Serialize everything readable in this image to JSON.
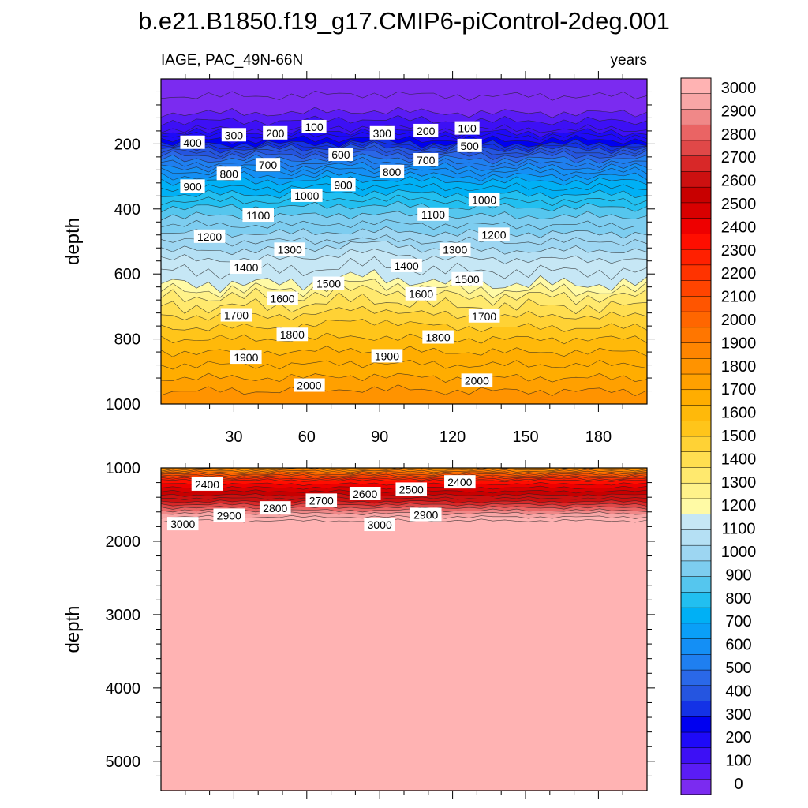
{
  "title": "b.e21.B1850.f19_g17.CMIP6-piControl-2deg.001",
  "subtitle_left": "IAGE, PAC_49N-66N",
  "subtitle_right": "years",
  "chart_data": {
    "type": "heatmap",
    "title": "b.e21.B1850.f19_g17.CMIP6-piControl-2deg.001",
    "variable": "IAGE, PAC_49N-66N",
    "units": "years",
    "ylabel": "depth",
    "xlim": [
      0,
      200
    ],
    "xticks": [
      30,
      60,
      90,
      120,
      150,
      180
    ],
    "panels": [
      {
        "name": "upper",
        "ylim": [
          0,
          1000
        ],
        "yticks": [
          200,
          400,
          600,
          800,
          1000
        ],
        "ylabel": "depth",
        "depth_at_level": [
          [
            0,
            0
          ],
          [
            100,
            105
          ],
          [
            200,
            155
          ],
          [
            300,
            175
          ],
          [
            400,
            200
          ],
          [
            500,
            215
          ],
          [
            600,
            235
          ],
          [
            700,
            260
          ],
          [
            800,
            285
          ],
          [
            900,
            315
          ],
          [
            1000,
            355
          ],
          [
            1100,
            395
          ],
          [
            1200,
            450
          ],
          [
            1300,
            500
          ],
          [
            1400,
            555
          ],
          [
            1500,
            630
          ],
          [
            1600,
            670
          ],
          [
            1700,
            730
          ],
          [
            1800,
            800
          ],
          [
            1900,
            880
          ],
          [
            2000,
            960
          ],
          [
            2050,
            1000
          ]
        ],
        "contour_labels": [
          {
            "x": 13,
            "depth": 196,
            "text": "400"
          },
          {
            "x": 30,
            "depth": 173,
            "text": "300"
          },
          {
            "x": 47,
            "depth": 167,
            "text": "200"
          },
          {
            "x": 63,
            "depth": 148,
            "text": "100"
          },
          {
            "x": 91,
            "depth": 167,
            "text": "300"
          },
          {
            "x": 109,
            "depth": 160,
            "text": "200"
          },
          {
            "x": 126,
            "depth": 152,
            "text": "100"
          },
          {
            "x": 127,
            "depth": 206,
            "text": "500"
          },
          {
            "x": 74,
            "depth": 233,
            "text": "600"
          },
          {
            "x": 44,
            "depth": 265,
            "text": "700"
          },
          {
            "x": 109,
            "depth": 250,
            "text": "700"
          },
          {
            "x": 28,
            "depth": 292,
            "text": "800"
          },
          {
            "x": 95,
            "depth": 286,
            "text": "800"
          },
          {
            "x": 13,
            "depth": 331,
            "text": "900"
          },
          {
            "x": 75,
            "depth": 326,
            "text": "900"
          },
          {
            "x": 60,
            "depth": 359,
            "text": "1000"
          },
          {
            "x": 133,
            "depth": 372,
            "text": "1000"
          },
          {
            "x": 40,
            "depth": 420,
            "text": "1100"
          },
          {
            "x": 112,
            "depth": 417,
            "text": "1100"
          },
          {
            "x": 20,
            "depth": 485,
            "text": "1200"
          },
          {
            "x": 137,
            "depth": 479,
            "text": "1200"
          },
          {
            "x": 53,
            "depth": 525,
            "text": "1300"
          },
          {
            "x": 121,
            "depth": 526,
            "text": "1300"
          },
          {
            "x": 35,
            "depth": 580,
            "text": "1400"
          },
          {
            "x": 101,
            "depth": 575,
            "text": "1400"
          },
          {
            "x": 69,
            "depth": 630,
            "text": "1500"
          },
          {
            "x": 126,
            "depth": 616,
            "text": "1500"
          },
          {
            "x": 50,
            "depth": 676,
            "text": "1600"
          },
          {
            "x": 107,
            "depth": 662,
            "text": "1600"
          },
          {
            "x": 31,
            "depth": 727,
            "text": "1700"
          },
          {
            "x": 133,
            "depth": 730,
            "text": "1700"
          },
          {
            "x": 54,
            "depth": 787,
            "text": "1800"
          },
          {
            "x": 114,
            "depth": 795,
            "text": "1800"
          },
          {
            "x": 35,
            "depth": 857,
            "text": "1900"
          },
          {
            "x": 93,
            "depth": 853,
            "text": "1900"
          },
          {
            "x": 61,
            "depth": 943,
            "text": "2000"
          },
          {
            "x": 130,
            "depth": 928,
            "text": "2000"
          }
        ]
      },
      {
        "name": "lower",
        "ylim": [
          1000,
          5400
        ],
        "yticks": [
          1000,
          2000,
          3000,
          4000,
          5000
        ],
        "ylabel": "depth",
        "depth_at_level": [
          [
            2000,
            1000
          ],
          [
            2400,
            1170
          ],
          [
            2500,
            1270
          ],
          [
            2600,
            1370
          ],
          [
            2700,
            1460
          ],
          [
            2800,
            1540
          ],
          [
            2900,
            1620
          ],
          [
            3000,
            1720
          ],
          [
            3050,
            5400
          ]
        ],
        "contour_labels": [
          {
            "x": 19,
            "depth": 1225,
            "text": "2400"
          },
          {
            "x": 123,
            "depth": 1195,
            "text": "2400"
          },
          {
            "x": 103,
            "depth": 1295,
            "text": "2500"
          },
          {
            "x": 84,
            "depth": 1355,
            "text": "2600"
          },
          {
            "x": 66,
            "depth": 1445,
            "text": "2700"
          },
          {
            "x": 47,
            "depth": 1550,
            "text": "2800"
          },
          {
            "x": 28,
            "depth": 1650,
            "text": "2900"
          },
          {
            "x": 109,
            "depth": 1640,
            "text": "2900"
          },
          {
            "x": 9,
            "depth": 1765,
            "text": "3000"
          },
          {
            "x": 90,
            "depth": 1775,
            "text": "3000"
          }
        ]
      }
    ],
    "colorbar": {
      "labels": [
        "0",
        "100",
        "200",
        "300",
        "400",
        "500",
        "600",
        "700",
        "800",
        "900",
        "1000",
        "1100",
        "1200",
        "1300",
        "1400",
        "1500",
        "1600",
        "1700",
        "1800",
        "1900",
        "2000",
        "2100",
        "2200",
        "2300",
        "2400",
        "2500",
        "2600",
        "2700",
        "2800",
        "2900",
        "3000"
      ],
      "colors": [
        "#7b2bf0",
        "#5a1cf5",
        "#3d10f5",
        "#1e0af8",
        "#0000f0",
        "#1432e6",
        "#2555e0",
        "#2a68e8",
        "#1f7ff0",
        "#148ff5",
        "#0a9ff7",
        "#00b0f5",
        "#22bff0",
        "#55c6ee",
        "#7dcdf0",
        "#9dd6f2",
        "#b5e0f4",
        "#c6e7f5",
        "#fffaa5",
        "#fff28a",
        "#ffe96e",
        "#ffde50",
        "#ffd235",
        "#ffc51a",
        "#ffb90a",
        "#ffad00",
        "#ffa000",
        "#ff9300",
        "#ff8500",
        "#ff7600",
        "#ff6600",
        "#ff5500",
        "#ff4400",
        "#ff3300",
        "#ff2000",
        "#ff0e00",
        "#ee0000",
        "#d80000",
        "#c80000",
        "#cc1010",
        "#d82828",
        "#e04848",
        "#ea6464",
        "#f08888",
        "#f8a6a6",
        "#ffb3b3"
      ]
    }
  }
}
